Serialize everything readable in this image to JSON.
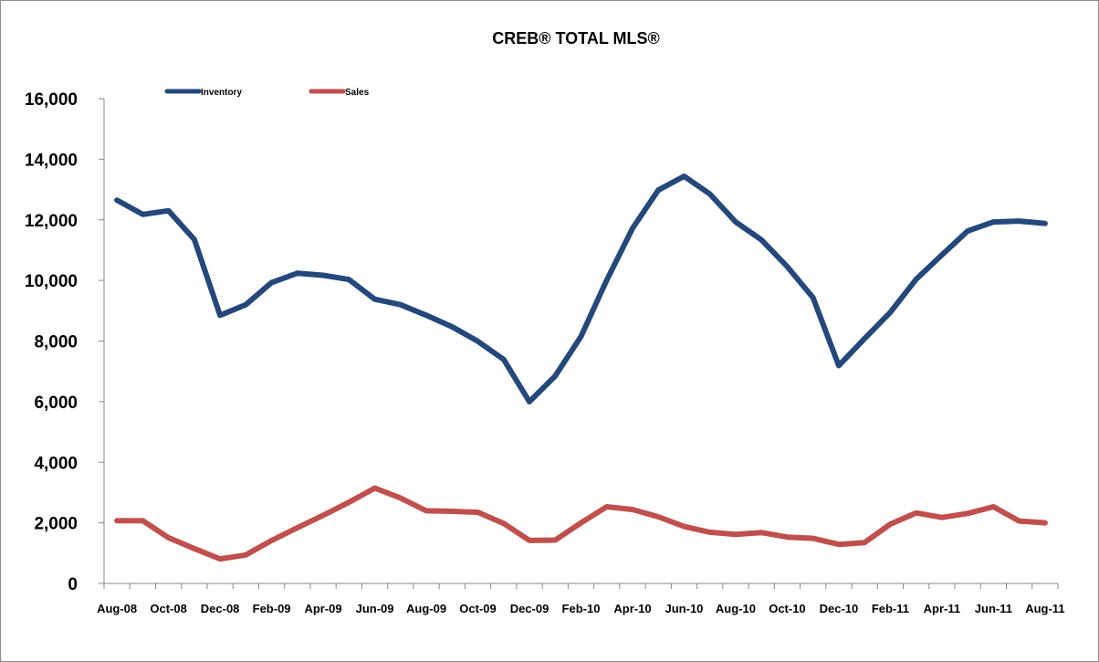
{
  "colors": {
    "inventory": "#24487b",
    "sales": "#c0504d",
    "axis": "#888888",
    "border": "#8c8c8c"
  },
  "chart_data": {
    "type": "line",
    "title": "CREB® TOTAL MLS®",
    "xlabel": "",
    "ylabel": "",
    "ylim": [
      0,
      16000
    ],
    "yticks": [
      0,
      2000,
      4000,
      6000,
      8000,
      10000,
      12000,
      14000,
      16000
    ],
    "ytick_labels": [
      "0",
      "2,000",
      "4,000",
      "6,000",
      "8,000",
      "10,000",
      "12,000",
      "14,000",
      "16,000"
    ],
    "grid": false,
    "legend_position": "top-left",
    "x": [
      "Aug-08",
      "Sep-08",
      "Oct-08",
      "Nov-08",
      "Dec-08",
      "Jan-09",
      "Feb-09",
      "Mar-09",
      "Apr-09",
      "May-09",
      "Jun-09",
      "Jul-09",
      "Aug-09",
      "Sep-09",
      "Oct-09",
      "Nov-09",
      "Dec-09",
      "Jan-10",
      "Feb-10",
      "Mar-10",
      "Apr-10",
      "May-10",
      "Jun-10",
      "Jul-10",
      "Aug-10",
      "Sep-10",
      "Oct-10",
      "Nov-10",
      "Dec-10",
      "Jan-11",
      "Feb-11",
      "Mar-11",
      "Apr-11",
      "May-11",
      "Jun-11",
      "Jul-11",
      "Aug-11"
    ],
    "xtick_labels": [
      "Aug-08",
      "Oct-08",
      "Dec-08",
      "Feb-09",
      "Apr-09",
      "Jun-09",
      "Aug-09",
      "Oct-09",
      "Dec-09",
      "Feb-10",
      "Apr-10",
      "Jun-10",
      "Aug-10",
      "Oct-10",
      "Dec-10",
      "Feb-11",
      "Apr-11",
      "Jun-11",
      "Aug-11"
    ],
    "series": [
      {
        "name": "Inventory",
        "color": "#24487b",
        "values": [
          12650,
          12180,
          12300,
          11350,
          8850,
          9200,
          9930,
          10240,
          10170,
          10030,
          9380,
          9200,
          8850,
          8470,
          7990,
          7390,
          6000,
          6850,
          8150,
          10010,
          11720,
          12980,
          13440,
          12850,
          11930,
          11340,
          10460,
          9430,
          7190,
          8080,
          8950,
          10040,
          10840,
          11630,
          11930,
          11960,
          11880
        ]
      },
      {
        "name": "Sales",
        "color": "#c0504d",
        "values": [
          2070,
          2070,
          1510,
          1150,
          810,
          940,
          1420,
          1840,
          2250,
          2680,
          3150,
          2820,
          2400,
          2380,
          2350,
          1980,
          1420,
          1430,
          2000,
          2530,
          2440,
          2200,
          1880,
          1690,
          1620,
          1680,
          1530,
          1490,
          1290,
          1350,
          1960,
          2330,
          2180,
          2310,
          2530,
          2060,
          2000
        ]
      }
    ]
  }
}
